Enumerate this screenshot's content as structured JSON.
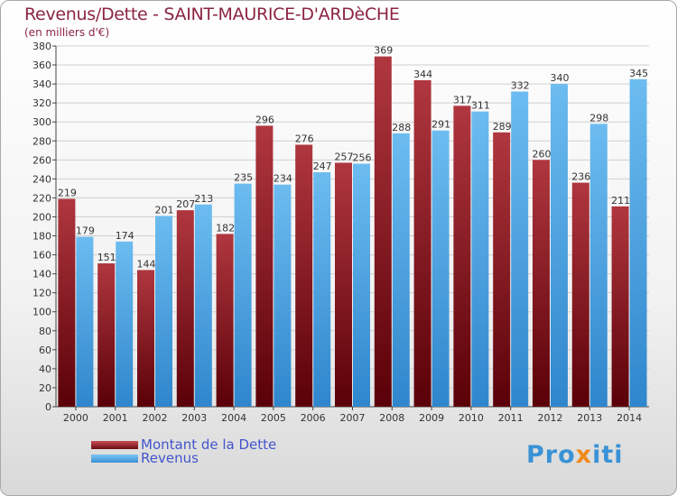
{
  "page": {
    "title": "Revenus/Dette - SAINT-MAURICE-D'ARDèCHE",
    "subtitle": "(en milliers d'€)",
    "logo_text_a": "Pro",
    "logo_text_b": "x",
    "logo_text_c": "iti"
  },
  "legend": {
    "debt_label": "Montant de la Dette",
    "revenue_label": "Revenus"
  },
  "colors": {
    "debt_top": "#b0373f",
    "debt_bottom": "#5a0008",
    "revenue_top": "#6cbcf0",
    "revenue_bottom": "#2f86cc",
    "title": "#8b2540",
    "legend_text": "#4455cc"
  },
  "chart_data": {
    "type": "bar",
    "title": "Revenus/Dette - SAINT-MAURICE-D'ARDèCHE",
    "subtitle": "(en milliers d'€)",
    "xlabel": "",
    "ylabel": "",
    "ylim": [
      0,
      380
    ],
    "yticks": [
      0,
      20,
      40,
      60,
      80,
      100,
      120,
      140,
      160,
      180,
      200,
      220,
      240,
      260,
      280,
      300,
      320,
      340,
      360,
      380
    ],
    "grid": true,
    "legend_position": "bottom-left",
    "categories": [
      "2000",
      "2001",
      "2002",
      "2003",
      "2004",
      "2005",
      "2006",
      "2007",
      "2008",
      "2009",
      "2010",
      "2011",
      "2012",
      "2013",
      "2014"
    ],
    "series": [
      {
        "name": "Montant de la Dette",
        "values": [
          219,
          151,
          144,
          207,
          182,
          296,
          276,
          257,
          369,
          344,
          317,
          289,
          260,
          236,
          211
        ]
      },
      {
        "name": "Revenus",
        "values": [
          179,
          174,
          201,
          213,
          235,
          234,
          247,
          256,
          288,
          291,
          311,
          332,
          340,
          298,
          345
        ]
      }
    ]
  }
}
